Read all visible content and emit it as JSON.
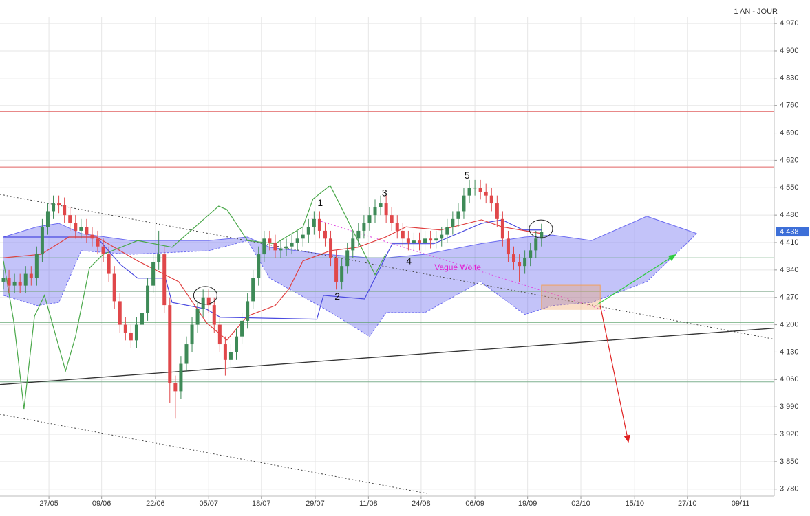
{
  "chart_data": {
    "type": "candlestick",
    "title": "1 AN - JOUR",
    "open": [
      4310,
      4320,
      4300,
      4310,
      4300,
      4330,
      4320,
      4380,
      4450,
      4490,
      4510,
      4505,
      4480,
      4460,
      4440,
      4450,
      4430,
      4420,
      4400,
      4380,
      4330,
      4260,
      4200,
      4180,
      4160,
      4200,
      4230,
      4300,
      4360,
      4380,
      4250,
      4050,
      4030,
      4100,
      4150,
      4200,
      4240,
      4270,
      4250,
      4200,
      4150,
      4110,
      4130,
      4170,
      4210,
      4260,
      4320,
      4380,
      4420,
      4410,
      4390,
      4395,
      4400,
      4410,
      4420,
      4430,
      4450,
      4470,
      4440,
      4420,
      4370,
      4310,
      4350,
      4390,
      4420,
      4440,
      4460,
      4480,
      4500,
      4510,
      4480,
      4460,
      4440,
      4420,
      4410,
      4415,
      4410,
      4420,
      4415,
      4420,
      4430,
      4450,
      4470,
      4490,
      4530,
      4550,
      4550,
      4540,
      4530,
      4510,
      4470,
      4420,
      4380,
      4360,
      4350,
      4370,
      4390,
      4420
    ],
    "high": [
      4340,
      4340,
      4330,
      4330,
      4350,
      4350,
      4400,
      4470,
      4510,
      4530,
      4530,
      4525,
      4500,
      4480,
      4470,
      4470,
      4450,
      4440,
      4420,
      4400,
      4350,
      4280,
      4220,
      4200,
      4220,
      4250,
      4320,
      4380,
      4440,
      4400,
      4270,
      4070,
      4120,
      4170,
      4220,
      4260,
      4290,
      4290,
      4270,
      4220,
      4170,
      4150,
      4190,
      4230,
      4280,
      4340,
      4400,
      4440,
      4440,
      4430,
      4415,
      4420,
      4430,
      4440,
      4450,
      4470,
      4490,
      4490,
      4460,
      4440,
      4390,
      4370,
      4410,
      4440,
      4460,
      4480,
      4500,
      4520,
      4530,
      4530,
      4500,
      4480,
      4460,
      4440,
      4435,
      4435,
      4440,
      4440,
      4440,
      4450,
      4470,
      4490,
      4510,
      4550,
      4570,
      4570,
      4570,
      4560,
      4550,
      4530,
      4490,
      4440,
      4400,
      4380,
      4390,
      4410,
      4440,
      4458
    ],
    "low": [
      4290,
      4280,
      4280,
      4280,
      4280,
      4300,
      4300,
      4360,
      4430,
      4470,
      4485,
      4460,
      4440,
      4420,
      4420,
      4410,
      4400,
      4380,
      4360,
      4310,
      4240,
      4180,
      4160,
      4140,
      4140,
      4180,
      4210,
      4280,
      4340,
      4230,
      4000,
      3960,
      4010,
      4080,
      4130,
      4180,
      4220,
      4230,
      4180,
      4130,
      4070,
      4090,
      4110,
      4150,
      4190,
      4240,
      4300,
      4360,
      4390,
      4370,
      4370,
      4375,
      4380,
      4390,
      4400,
      4410,
      4430,
      4420,
      4400,
      4350,
      4290,
      4290,
      4330,
      4370,
      4400,
      4420,
      4440,
      4460,
      4480,
      4460,
      4440,
      4420,
      4400,
      4390,
      4390,
      4390,
      4390,
      4395,
      4395,
      4400,
      4410,
      4430,
      4450,
      4470,
      4510,
      4530,
      4520,
      4510,
      4490,
      4450,
      4400,
      4360,
      4340,
      4310,
      4330,
      4350,
      4370,
      4400
    ],
    "close": [
      4320,
      4300,
      4310,
      4300,
      4330,
      4320,
      4380,
      4450,
      4490,
      4510,
      4505,
      4480,
      4460,
      4440,
      4450,
      4430,
      4420,
      4400,
      4380,
      4330,
      4260,
      4200,
      4180,
      4160,
      4200,
      4230,
      4300,
      4360,
      4380,
      4250,
      4050,
      4030,
      4100,
      4150,
      4200,
      4240,
      4270,
      4250,
      4200,
      4150,
      4110,
      4130,
      4170,
      4210,
      4260,
      4320,
      4380,
      4420,
      4410,
      4390,
      4395,
      4400,
      4410,
      4420,
      4430,
      4450,
      4470,
      4440,
      4420,
      4370,
      4310,
      4350,
      4390,
      4420,
      4440,
      4460,
      4480,
      4500,
      4510,
      4480,
      4460,
      4440,
      4420,
      4410,
      4415,
      4410,
      4420,
      4415,
      4420,
      4430,
      4450,
      4470,
      4490,
      4530,
      4550,
      4550,
      4540,
      4530,
      4510,
      4470,
      4420,
      4380,
      4360,
      4350,
      4370,
      4390,
      4420,
      4438
    ],
    "up_color": "#3e8a57",
    "down_color": "#e0474a",
    "xlim": [
      -0.62,
      138.96
    ],
    "xticks": [
      {
        "value": 8.2,
        "label": "27/05"
      },
      {
        "value": 17.7,
        "label": "09/06"
      },
      {
        "value": 27.4,
        "label": "22/06"
      },
      {
        "value": 37,
        "label": "05/07"
      },
      {
        "value": 46.5,
        "label": "18/07"
      },
      {
        "value": 56.2,
        "label": "29/07"
      },
      {
        "value": 65.8,
        "label": "11/08"
      },
      {
        "value": 75.3,
        "label": "24/08"
      },
      {
        "value": 85,
        "label": "06/09"
      },
      {
        "value": 94.5,
        "label": "19/09"
      },
      {
        "value": 104.1,
        "label": "02/10"
      },
      {
        "value": 113.8,
        "label": "15/10"
      },
      {
        "value": 123.3,
        "label": "27/10"
      },
      {
        "value": 132.9,
        "label": "09/11"
      }
    ],
    "ylim": [
      3762,
      4986
    ],
    "yticks": [
      {
        "value": 3780,
        "label": "3 780"
      },
      {
        "value": 3850,
        "label": "3 850"
      },
      {
        "value": 3920,
        "label": "3 920"
      },
      {
        "value": 3990,
        "label": "3 990"
      },
      {
        "value": 4060,
        "label": "4 060"
      },
      {
        "value": 4130,
        "label": "4 130"
      },
      {
        "value": 4200,
        "label": "4 200"
      },
      {
        "value": 4270,
        "label": "4 270"
      },
      {
        "value": 4340,
        "label": "4 340"
      },
      {
        "value": 4410,
        "label": "4 410"
      },
      {
        "value": 4480,
        "label": "4 480"
      },
      {
        "value": 4550,
        "label": "4 550"
      },
      {
        "value": 4620,
        "label": "4 620"
      },
      {
        "value": 4690,
        "label": "4 690"
      },
      {
        "value": 4760,
        "label": "4 760"
      },
      {
        "value": 4830,
        "label": "4 830"
      },
      {
        "value": 4900,
        "label": "4 900"
      },
      {
        "value": 4970,
        "label": "4 970"
      }
    ],
    "grid": true,
    "last_price": {
      "value": 4438,
      "label": "4 438",
      "color": "#3d6fd8"
    },
    "hlines": [
      {
        "value": 4745,
        "color": "#e06060"
      },
      {
        "value": 4603,
        "color": "#e06060"
      },
      {
        "value": 4371,
        "color": "#5aa06a"
      },
      {
        "value": 4285,
        "color": "#7fa88a"
      },
      {
        "value": 4206,
        "color": "#4f9a5f"
      },
      {
        "value": 4054,
        "color": "#7fb08f"
      }
    ],
    "cloud": {
      "color": "#6a6af0",
      "x": [
        0,
        6,
        10,
        14,
        23,
        37,
        44,
        48,
        58,
        66,
        69,
        76,
        86,
        94,
        99,
        106,
        116,
        125
      ],
      "top": [
        4424,
        4450,
        4459,
        4433,
        4415,
        4415,
        4424,
        4398,
        4380,
        4371,
        4371,
        4380,
        4407,
        4424,
        4429,
        4415,
        4477,
        4433
      ],
      "bottom": [
        4275,
        4249,
        4257,
        4389,
        4380,
        4389,
        4415,
        4319,
        4240,
        4170,
        4231,
        4231,
        4310,
        4226,
        4249,
        4257,
        4310,
        4433
      ]
    },
    "lines": [
      {
        "color": "#4aa84a",
        "x": [
          0,
          1.9,
          3.7,
          5.6,
          7.4,
          11.2,
          13,
          15.5,
          18,
          24.2,
          30.4,
          36,
          38.8,
          40.3,
          44,
          49,
          54,
          55.8,
          58.9,
          60.8,
          63.9,
          67,
          68.9
        ],
        "y": [
          4363,
          4205,
          3985,
          4222,
          4275,
          4082,
          4170,
          4345,
          4380,
          4415,
          4398,
          4468,
          4503,
          4494,
          4415,
          4407,
          4450,
          4521,
          4556,
          4503,
          4415,
          4328,
          4380
        ]
      },
      {
        "color": "#4a4ae0",
        "x": [
          0,
          16.8,
          21.1,
          24.2,
          29.2,
          30.4,
          36.6,
          39.1,
          56.5,
          57.7,
          65.1,
          70.1,
          77.6,
          86.2,
          89.9,
          93.7,
          97
        ],
        "y": [
          4424,
          4424,
          4354,
          4319,
          4319,
          4257,
          4240,
          4219,
          4214,
          4275,
          4266,
          4407,
          4407,
          4459,
          4468,
          4442,
          4442
        ]
      },
      {
        "color": "#e04040",
        "x": [
          0,
          6.8,
          11.8,
          16.8,
          24.2,
          31.6,
          36.6,
          40.3,
          44,
          49,
          51.5,
          54,
          58.9,
          63.9,
          68.9,
          72.6,
          78.8,
          86.2,
          89.9,
          97
        ],
        "y": [
          4371,
          4380,
          4424,
          4424,
          4363,
          4310,
          4205,
          4161,
          4222,
          4249,
          4292,
          4363,
          4389,
          4398,
          4424,
          4450,
          4442,
          4468,
          4450,
          4433
        ]
      }
    ],
    "trendlines": [
      {
        "color": "#444444",
        "dash": "2 3",
        "x": [
          -0.62,
          138.96
        ],
        "y": [
          4533,
          4163
        ]
      },
      {
        "color": "#444444",
        "dash": "2 3",
        "x": [
          -0.62,
          76.3
        ],
        "y": [
          3971,
          3769
        ]
      },
      {
        "color": "#333333",
        "dash": "",
        "x": [
          -0.62,
          138.96
        ],
        "y": [
          4047,
          4191
        ]
      },
      {
        "color": "#e040e0",
        "dash": "2 3",
        "x": [
          55.5,
          108.6
        ],
        "y": [
          4472,
          4236
        ]
      }
    ],
    "arrows": [
      {
        "color": "#2ecc40",
        "x": [
          107.1,
          121.3
        ],
        "y": [
          4252,
          4380
        ]
      },
      {
        "color": "#e02020",
        "x": [
          107.6,
          112.7
        ],
        "y": [
          4249,
          3898
        ]
      }
    ],
    "zone": {
      "color": "#f0a060",
      "x": [
        97,
        107.6
      ],
      "y": [
        4301,
        4240
      ]
    },
    "circles": [
      {
        "x": 36.4,
        "y": 4275
      },
      {
        "x": 96.9,
        "y": 4445
      }
    ],
    "annotations": [
      {
        "text": "1",
        "x": 57.1,
        "y": 4510,
        "color": "#111111"
      },
      {
        "text": "2",
        "x": 60.2,
        "y": 4271,
        "color": "#111111"
      },
      {
        "text": "3",
        "x": 68.7,
        "y": 4535,
        "color": "#111111"
      },
      {
        "text": "4",
        "x": 73.1,
        "y": 4361,
        "color": "#111111"
      },
      {
        "text": "5",
        "x": 83.6,
        "y": 4580,
        "color": "#111111"
      },
      {
        "text": "Vague Wolfe",
        "x": 81.9,
        "y": 4345,
        "color": "#e020d0"
      }
    ]
  }
}
